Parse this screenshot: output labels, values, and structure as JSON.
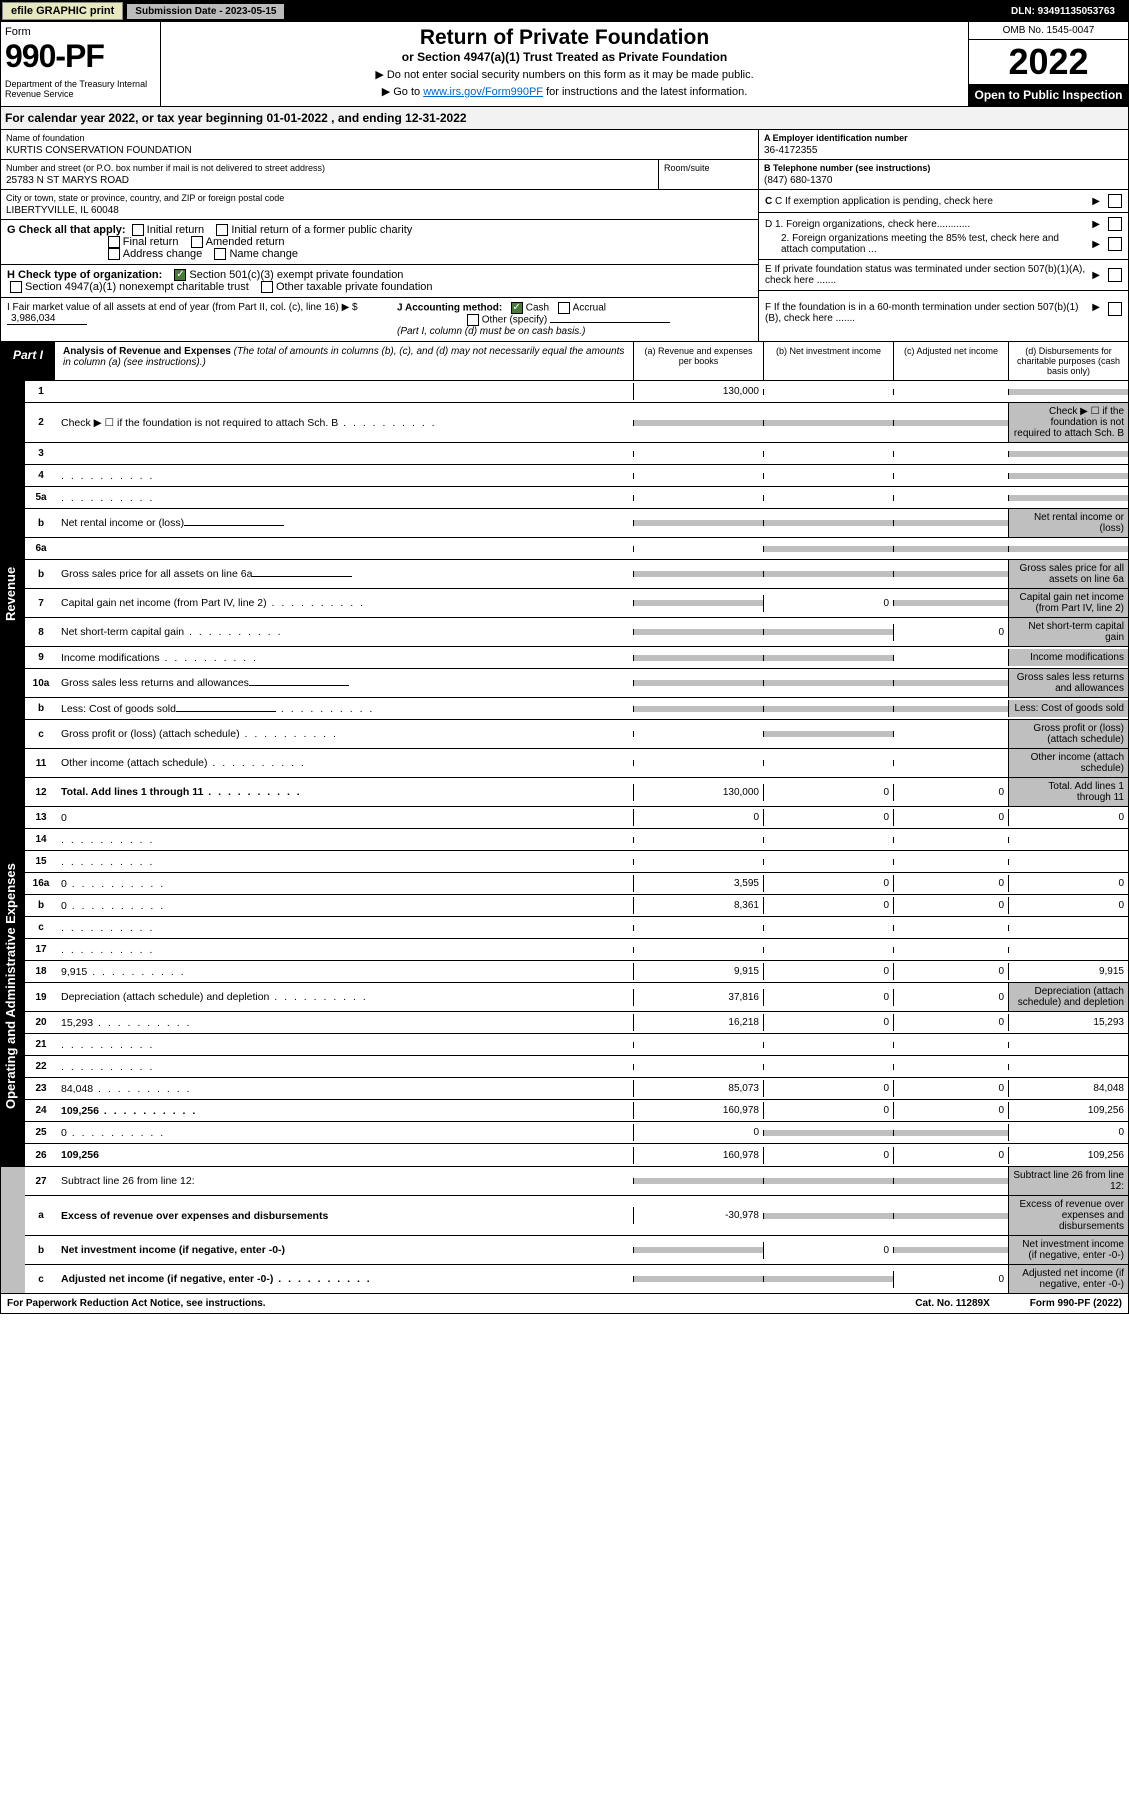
{
  "topbar": {
    "efile": "efile GRAPHIC print",
    "subdate_label": "Submission Date - 2023-05-15",
    "dln": "DLN: 93491135053763"
  },
  "header": {
    "form_word": "Form",
    "form_no": "990-PF",
    "dept": "Department of the Treasury\nInternal Revenue Service",
    "title": "Return of Private Foundation",
    "subtitle": "or Section 4947(a)(1) Trust Treated as Private Foundation",
    "instr1": "▶ Do not enter social security numbers on this form as it may be made public.",
    "instr2_pre": "▶ Go to ",
    "instr2_link": "www.irs.gov/Form990PF",
    "instr2_post": " for instructions and the latest information.",
    "omb": "OMB No. 1545-0047",
    "year": "2022",
    "open": "Open to Public Inspection"
  },
  "cal": "For calendar year 2022, or tax year beginning 01-01-2022            , and ending 12-31-2022",
  "foundation": {
    "name_label": "Name of foundation",
    "name": "KURTIS CONSERVATION FOUNDATION",
    "addr_label": "Number and street (or P.O. box number if mail is not delivered to street address)",
    "addr": "25783 N ST MARYS ROAD",
    "room_label": "Room/suite",
    "city_label": "City or town, state or province, country, and ZIP or foreign postal code",
    "city": "LIBERTYVILLE, IL  60048",
    "ein_label": "A Employer identification number",
    "ein": "36-4172355",
    "tel_label": "B Telephone number (see instructions)",
    "tel": "(847) 680-1370",
    "c_label": "C If exemption application is pending, check here",
    "d1": "D 1. Foreign organizations, check here............",
    "d2": "2. Foreign organizations meeting the 85% test, check here and attach computation ...",
    "e_label": "E  If private foundation status was terminated under section 507(b)(1)(A), check here .......",
    "f_label": "F  If the foundation is in a 60-month termination under section 507(b)(1)(B), check here .......",
    "g_label": "G Check all that apply:",
    "g_opts": [
      "Initial return",
      "Initial return of a former public charity",
      "Final return",
      "Amended return",
      "Address change",
      "Name change"
    ],
    "h_label": "H Check type of organization:",
    "h_opt1": "Section 501(c)(3) exempt private foundation",
    "h_opt2": "Section 4947(a)(1) nonexempt charitable trust",
    "h_opt3": "Other taxable private foundation",
    "i_label": "I Fair market value of all assets at end of year (from Part II, col. (c), line 16) ▶ $",
    "i_val": "3,986,034",
    "j_label": "J Accounting method:",
    "j_cash": "Cash",
    "j_accrual": "Accrual",
    "j_other": "Other (specify)",
    "j_note": "(Part I, column (d) must be on cash basis.)"
  },
  "part1": {
    "tag": "Part I",
    "title": "Analysis of Revenue and Expenses",
    "note": "(The total of amounts in columns (b), (c), and (d) may not necessarily equal the amounts in column (a) (see instructions).)",
    "col_a": "(a)   Revenue and expenses per books",
    "col_b": "(b)   Net investment income",
    "col_c": "(c)   Adjusted net income",
    "col_d": "(d)   Disbursements for charitable purposes (cash basis only)"
  },
  "sections": {
    "revenue": "Revenue",
    "expenses": "Operating and Administrative Expenses"
  },
  "lines": [
    {
      "n": "1",
      "d": "",
      "a": "130,000",
      "b": "",
      "c": "",
      "shade_d": true
    },
    {
      "n": "2",
      "d": "Check ▶ ☐ if the foundation is not required to attach Sch. B",
      "dots": true,
      "shade_a": true,
      "shade_b": true,
      "shade_c": true,
      "shade_d": true
    },
    {
      "n": "3",
      "d": "",
      "a": "",
      "b": "",
      "c": "",
      "shade_d": true
    },
    {
      "n": "4",
      "d": "",
      "dots": true,
      "a": "",
      "b": "",
      "c": "",
      "shade_d": true
    },
    {
      "n": "5a",
      "d": "",
      "dots": true,
      "a": "",
      "b": "",
      "c": "",
      "shade_d": true
    },
    {
      "n": "b",
      "d": "Net rental income or (loss)",
      "inline": true,
      "shade_a": true,
      "shade_b": true,
      "shade_c": true,
      "shade_d": true
    },
    {
      "n": "6a",
      "d": "",
      "a": "",
      "b": "",
      "c": "",
      "shade_b": true,
      "shade_c": true,
      "shade_d": true
    },
    {
      "n": "b",
      "d": "Gross sales price for all assets on line 6a",
      "inline": true,
      "shade_a": true,
      "shade_b": true,
      "shade_c": true,
      "shade_d": true
    },
    {
      "n": "7",
      "d": "Capital gain net income (from Part IV, line 2)",
      "dots": true,
      "shade_a": true,
      "b": "0",
      "shade_c": true,
      "shade_d": true
    },
    {
      "n": "8",
      "d": "Net short-term capital gain",
      "dots": true,
      "shade_a": true,
      "shade_b": true,
      "c": "0",
      "shade_d": true
    },
    {
      "n": "9",
      "d": "Income modifications",
      "dots": true,
      "shade_a": true,
      "shade_b": true,
      "c": "",
      "shade_d": true
    },
    {
      "n": "10a",
      "d": "Gross sales less returns and allowances",
      "inline": true,
      "shade_a": true,
      "shade_b": true,
      "shade_c": true,
      "shade_d": true
    },
    {
      "n": "b",
      "d": "Less: Cost of goods sold",
      "dots": true,
      "inline": true,
      "shade_a": true,
      "shade_b": true,
      "shade_c": true,
      "shade_d": true
    },
    {
      "n": "c",
      "d": "Gross profit or (loss) (attach schedule)",
      "dots": true,
      "a": "",
      "shade_b": true,
      "c": "",
      "shade_d": true
    },
    {
      "n": "11",
      "d": "Other income (attach schedule)",
      "dots": true,
      "a": "",
      "b": "",
      "c": "",
      "shade_d": true
    },
    {
      "n": "12",
      "d": "Total. Add lines 1 through 11",
      "dots": true,
      "bold": true,
      "a": "130,000",
      "b": "0",
      "c": "0",
      "shade_d": true
    }
  ],
  "exp_lines": [
    {
      "n": "13",
      "d": "0",
      "a": "0",
      "b": "0",
      "c": "0"
    },
    {
      "n": "14",
      "d": "",
      "dots": true,
      "a": "",
      "b": "",
      "c": ""
    },
    {
      "n": "15",
      "d": "",
      "dots": true,
      "a": "",
      "b": "",
      "c": ""
    },
    {
      "n": "16a",
      "d": "0",
      "dots": true,
      "a": "3,595",
      "b": "0",
      "c": "0"
    },
    {
      "n": "b",
      "d": "0",
      "dots": true,
      "a": "8,361",
      "b": "0",
      "c": "0"
    },
    {
      "n": "c",
      "d": "",
      "dots": true,
      "a": "",
      "b": "",
      "c": ""
    },
    {
      "n": "17",
      "d": "",
      "dots": true,
      "a": "",
      "b": "",
      "c": ""
    },
    {
      "n": "18",
      "d": "9,915",
      "dots": true,
      "a": "9,915",
      "b": "0",
      "c": "0"
    },
    {
      "n": "19",
      "d": "Depreciation (attach schedule) and depletion",
      "dots": true,
      "a": "37,816",
      "b": "0",
      "c": "0",
      "shade_d": true
    },
    {
      "n": "20",
      "d": "15,293",
      "dots": true,
      "a": "16,218",
      "b": "0",
      "c": "0"
    },
    {
      "n": "21",
      "d": "",
      "dots": true,
      "a": "",
      "b": "",
      "c": ""
    },
    {
      "n": "22",
      "d": "",
      "dots": true,
      "a": "",
      "b": "",
      "c": ""
    },
    {
      "n": "23",
      "d": "84,048",
      "dots": true,
      "a": "85,073",
      "b": "0",
      "c": "0"
    },
    {
      "n": "24",
      "d": "109,256",
      "dots": true,
      "bold": true,
      "a": "160,978",
      "b": "0",
      "c": "0"
    },
    {
      "n": "25",
      "d": "0",
      "dots": true,
      "a": "0",
      "shade_b": true,
      "shade_c": true
    },
    {
      "n": "26",
      "d": "109,256",
      "bold": true,
      "a": "160,978",
      "b": "0",
      "c": "0"
    }
  ],
  "bottom_lines": [
    {
      "n": "27",
      "d": "Subtract line 26 from line 12:",
      "shade_a": true,
      "shade_b": true,
      "shade_c": true,
      "shade_d": true
    },
    {
      "n": "a",
      "d": "Excess of revenue over expenses and disbursements",
      "bold": true,
      "a": "-30,978",
      "shade_b": true,
      "shade_c": true,
      "shade_d": true
    },
    {
      "n": "b",
      "d": "Net investment income (if negative, enter -0-)",
      "bold": true,
      "shade_a": true,
      "b": "0",
      "shade_c": true,
      "shade_d": true
    },
    {
      "n": "c",
      "d": "Adjusted net income (if negative, enter -0-)",
      "dots": true,
      "bold": true,
      "shade_a": true,
      "shade_b": true,
      "c": "0",
      "shade_d": true
    }
  ],
  "footer": {
    "left": "For Paperwork Reduction Act Notice, see instructions.",
    "mid": "Cat. No. 11289X",
    "right": "Form 990-PF (2022)"
  }
}
